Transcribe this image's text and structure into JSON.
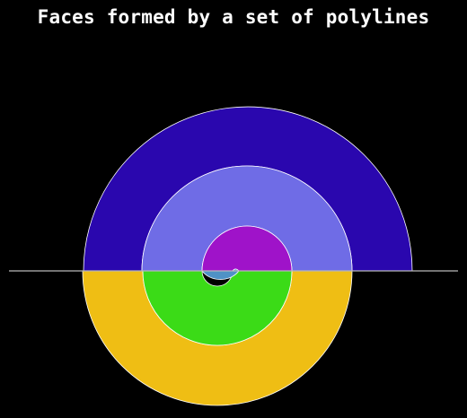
{
  "title": "Faces formed by a set of polylines",
  "colors": {
    "background": "#000000",
    "title": "#ffffff",
    "outline": "#ffffff",
    "baseline": "#b8b8b8"
  },
  "faces": [
    {
      "name": "outer-upper-half-ring",
      "fill": "#2a07ae"
    },
    {
      "name": "outer-lower-half-ring",
      "fill": "#efbe14"
    },
    {
      "name": "middle-upper-half-ring",
      "fill": "#6f6ce6"
    },
    {
      "name": "middle-lower-half-ring",
      "fill": "#3bdb17"
    },
    {
      "name": "inner-upper-half-disk",
      "fill": "#9f13c9"
    },
    {
      "name": "inner-lower-spiral-end",
      "fill": "#4f92c6"
    }
  ]
}
